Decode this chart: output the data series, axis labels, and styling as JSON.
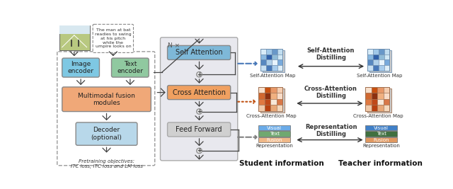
{
  "bg_color": "#ffffff",
  "image_encoder_color": "#7ec8e3",
  "text_encoder_color": "#90c9a0",
  "fusion_color": "#f0a878",
  "decoder_color": "#b8d8ea",
  "self_attn_color": "#7eb8d8",
  "cross_attn_color": "#f0a060",
  "feed_forward_color": "#d0d0d0",
  "nx_box_color": "#e8e8ee",
  "sa_colors_4x4": [
    "#d8ecf8",
    "#a0c8e8",
    "#6898c8",
    "#c0ddf0",
    "#88b8e0",
    "#3060a8",
    "#90bcd8",
    "#d0e8f5",
    "#5888c0",
    "#b0d0ea",
    "#e8f4fd",
    "#78aadc",
    "#c8e0f2",
    "#4878b8",
    "#a8ccec",
    "#deeef8"
  ],
  "ca_colors_4x4": [
    "#f8e0cc",
    "#c85010",
    "#e89868",
    "#f5cdb0",
    "#d06830",
    "#8b3010",
    "#f0b080",
    "#f8dcc8",
    "#e07840",
    "#c04818",
    "#f8e8d8",
    "#d87848",
    "#f0c8a8",
    "#b84010",
    "#e8a878",
    "#f5d8bc"
  ],
  "student_label": "Student information",
  "teacher_label": "Teacher information",
  "self_attn_distill_label": "Self-Attention\nDistilling",
  "cross_attn_distill_label": "Cross-Attention\nDistilling",
  "repr_distill_label": "Representation\nDistilling",
  "self_attn_map_label": "Self-Attention Map",
  "cross_attn_map_label": "Cross-Attention Map",
  "repr_label": "Representation",
  "visual_color": "#6aabe8",
  "text_color_bar": "#70a870",
  "fusion_bar_color": "#f0b888",
  "teacher_visual_color": "#4080c8",
  "teacher_text_color": "#407040",
  "teacher_fusion_color": "#e09860",
  "pretraining_text": "Pretraining objectives:\nITC loss, ITC loss and LM loss",
  "caption_text": "The man at bat\nreadies to swing\nat his pitch\nwhile the\numpire looks on",
  "nx_label": "N ×"
}
